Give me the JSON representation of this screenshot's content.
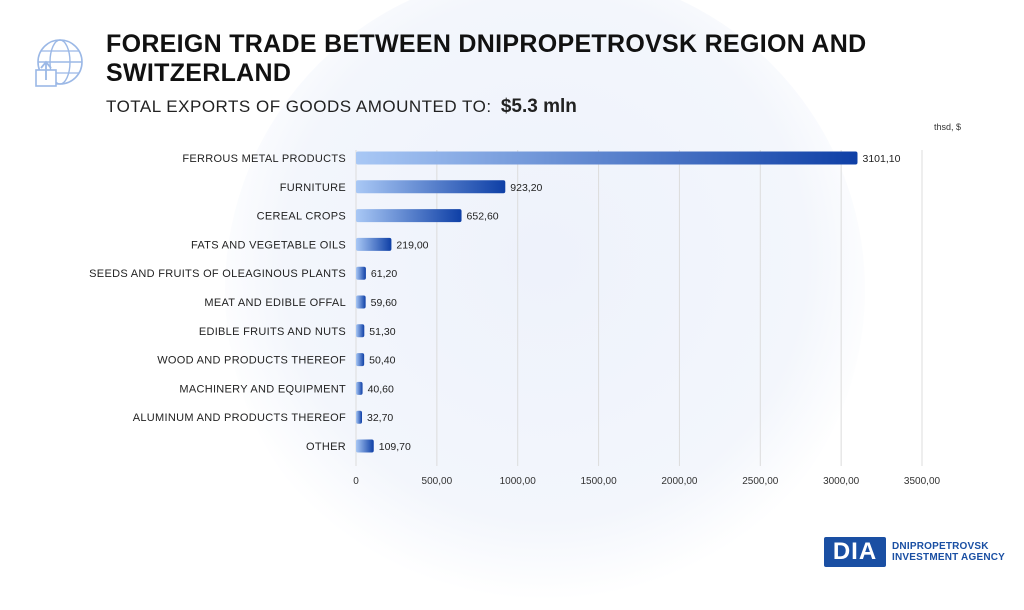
{
  "header": {
    "title": "FOREIGN TRADE BETWEEN DNIPROPETROVSK REGION AND SWITZERLAND",
    "subtitle_prefix": "TOTAL EXPORTS OF GOODS AMOUNTED TO:",
    "subtitle_value": "$5.3 mln"
  },
  "chart_data": {
    "type": "bar",
    "orientation": "horizontal",
    "unit_label": "thsd, $",
    "categories": [
      "FERROUS METAL PRODUCTS",
      "FURNITURE",
      "CEREAL CROPS",
      "FATS AND VEGETABLE OILS",
      "SEEDS AND FRUITS OF OLEAGINOUS PLANTS",
      "MEAT AND EDIBLE OFFAL",
      "EDIBLE FRUITS AND NUTS",
      "WOOD AND PRODUCTS THEREOF",
      "MACHINERY AND EQUIPMENT",
      "ALUMINUM AND PRODUCTS THEREOF",
      "OTHER"
    ],
    "values": [
      3101.1,
      923.2,
      652.6,
      219.0,
      61.2,
      59.6,
      51.3,
      50.4,
      40.6,
      32.7,
      109.7
    ],
    "value_labels": [
      "3101,10",
      "923,20",
      "652,60",
      "219,00",
      "61,20",
      "59,60",
      "51,30",
      "50,40",
      "40,60",
      "32,70",
      "109,70"
    ],
    "x_ticks": [
      0,
      500,
      1000,
      1500,
      2000,
      2500,
      3000,
      3500
    ],
    "x_tick_labels": [
      "0",
      "500,00",
      "1000,00",
      "1500,00",
      "2000,00",
      "2500,00",
      "3000,00",
      "3500,00"
    ],
    "xlim": [
      0,
      3500
    ],
    "grid": true,
    "colors": {
      "bar_start": "#a9c8f5",
      "bar_end": "#0e3fa6",
      "grid": "#dcdcdc"
    }
  },
  "brand": {
    "mark": "DIA",
    "line1": "DNIPROPETROVSK",
    "line2": "INVESTMENT AGENCY"
  }
}
